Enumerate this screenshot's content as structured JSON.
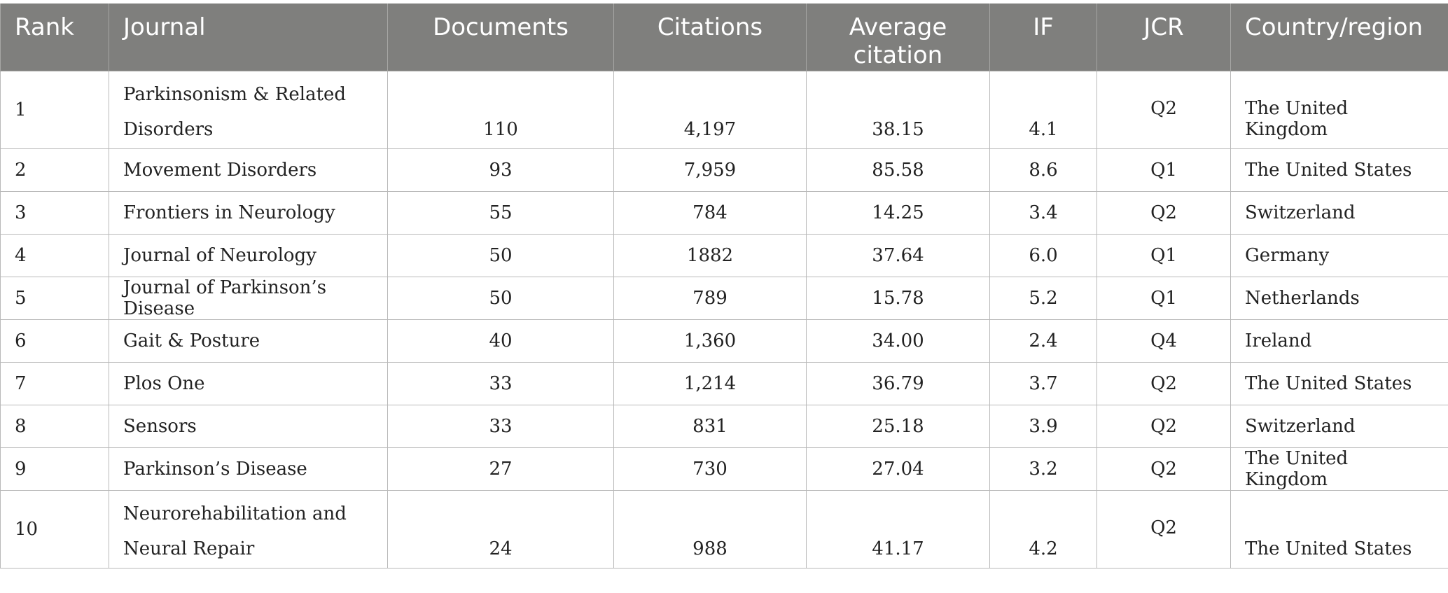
{
  "table": {
    "headers": [
      "Rank",
      "Journal",
      "Documents",
      "Citations",
      "Average citation",
      "IF",
      "JCR",
      "Country/region"
    ],
    "header_lines": {
      "average_line1": "Average",
      "average_line2": "citation"
    },
    "rows": [
      {
        "rank": "1",
        "journal_line1": "Parkinsonism & Related",
        "journal_line2": "Disorders",
        "documents": "110",
        "citations": "4,197",
        "average": "38.15",
        "if": "4.1",
        "jcr": "Q2",
        "country": "The United Kingdom"
      },
      {
        "rank": "2",
        "journal": "Movement Disorders",
        "documents": "93",
        "citations": "7,959",
        "average": "85.58",
        "if": "8.6",
        "jcr": "Q1",
        "country": "The United States"
      },
      {
        "rank": "3",
        "journal": "Frontiers in Neurology",
        "documents": "55",
        "citations": "784",
        "average": "14.25",
        "if": "3.4",
        "jcr": "Q2",
        "country": "Switzerland"
      },
      {
        "rank": "4",
        "journal": "Journal of Neurology",
        "documents": "50",
        "citations": "1882",
        "average": "37.64",
        "if": "6.0",
        "jcr": "Q1",
        "country": "Germany"
      },
      {
        "rank": "5",
        "journal": "Journal of Parkinson’s Disease",
        "documents": "50",
        "citations": "789",
        "average": "15.78",
        "if": "5.2",
        "jcr": "Q1",
        "country": "Netherlands"
      },
      {
        "rank": "6",
        "journal": "Gait & Posture",
        "documents": "40",
        "citations": "1,360",
        "average": "34.00",
        "if": "2.4",
        "jcr": "Q4",
        "country": "Ireland"
      },
      {
        "rank": "7",
        "journal": "Plos One",
        "documents": "33",
        "citations": "1,214",
        "average": "36.79",
        "if": "3.7",
        "jcr": "Q2",
        "country": "The United States"
      },
      {
        "rank": "8",
        "journal": "Sensors",
        "documents": "33",
        "citations": "831",
        "average": "25.18",
        "if": "3.9",
        "jcr": "Q2",
        "country": "Switzerland"
      },
      {
        "rank": "9",
        "journal": "Parkinson’s Disease",
        "documents": "27",
        "citations": "730",
        "average": "27.04",
        "if": "3.2",
        "jcr": "Q2",
        "country": "The United Kingdom"
      },
      {
        "rank": "10",
        "journal_line1": "Neurorehabilitation and",
        "journal_line2": "Neural Repair",
        "documents": "24",
        "citations": "988",
        "average": "41.17",
        "if": "4.2",
        "jcr": "Q2",
        "country": "The United States"
      }
    ]
  }
}
